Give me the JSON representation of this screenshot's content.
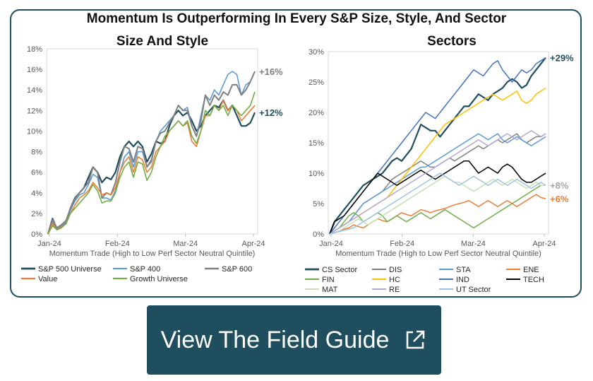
{
  "title": "Momentum Is Outperforming In Every S&P Size, Style, And Sector",
  "cta": {
    "label": "View The Field Guide",
    "icon": "external-link-icon"
  },
  "chart_data": [
    {
      "type": "line",
      "title": "Size And Style",
      "xlabel": "Momentum Trade (High to Low Perf Sector Neutral Quintile)",
      "ylabel": "",
      "x_ticks": [
        "Jan-24",
        "Feb-24",
        "Mar-24",
        "Apr-24"
      ],
      "y_ticks": [
        "0%",
        "2%",
        "4%",
        "6%",
        "8%",
        "10%",
        "12%",
        "14%",
        "16%",
        "18%"
      ],
      "ylim": [
        0,
        18
      ],
      "annotations": [
        {
          "text": "+16%",
          "color": "#7f7f7f",
          "y": 15.8
        },
        {
          "text": "+12%",
          "color": "#1f4e5f",
          "y": 11.8
        }
      ],
      "legend_position": "bottom",
      "series": [
        {
          "name": "S&P 500 Universe",
          "color": "#1f4e5f",
          "width": 2.2,
          "values": [
            0,
            1.5,
            0.5,
            0.8,
            1.0,
            2.5,
            3.5,
            4.0,
            4.5,
            5.5,
            6.5,
            6.0,
            5.0,
            5.5,
            5.3,
            6.0,
            7.5,
            8.5,
            9.0,
            8.5,
            9.0,
            8.5,
            7.0,
            7.8,
            9.0,
            8.8,
            9.0,
            10.5,
            11.5,
            12.0,
            11.5,
            11.8,
            11.0,
            10.0,
            10.5,
            11.5,
            12.0,
            12.5,
            12.3,
            13.0,
            12.0,
            12.5,
            11.5,
            10.5,
            10.5,
            10.8,
            11.8
          ]
        },
        {
          "name": "S&P 400",
          "color": "#5b9bd5",
          "width": 1.6,
          "values": [
            0,
            1.2,
            0.5,
            0.8,
            1.2,
            2.3,
            3.2,
            3.8,
            4.0,
            4.8,
            5.8,
            5.5,
            3.5,
            3.5,
            3.3,
            4.2,
            6.0,
            7.5,
            8.0,
            6.5,
            8.0,
            8.0,
            6.5,
            7.0,
            9.0,
            10.0,
            10.5,
            11.0,
            11.5,
            12.5,
            12.0,
            12.3,
            10.5,
            9.5,
            11.5,
            13.5,
            13.0,
            14.0,
            13.5,
            14.5,
            15.5,
            15.8,
            15.5,
            13.5,
            14.5,
            14.8,
            15.8
          ]
        },
        {
          "name": "S&P 600",
          "color": "#808080",
          "width": 2.0,
          "values": [
            0,
            1.4,
            0.6,
            0.9,
            1.3,
            2.5,
            3.4,
            4.0,
            4.5,
            5.0,
            6.5,
            6.0,
            3.5,
            4.0,
            3.8,
            5.0,
            7.0,
            8.5,
            8.3,
            7.0,
            8.5,
            8.3,
            6.5,
            7.2,
            9.0,
            9.8,
            10.0,
            10.8,
            11.5,
            12.5,
            12.0,
            12.0,
            10.5,
            9.5,
            11.0,
            13.5,
            12.5,
            13.5,
            13.0,
            13.8,
            13.5,
            14.5,
            14.5,
            13.5,
            14.0,
            14.8,
            15.8
          ]
        },
        {
          "name": "Value",
          "color": "#ed7d31",
          "width": 1.6,
          "values": [
            0,
            1.0,
            0.4,
            0.7,
            1.0,
            2.0,
            2.8,
            3.5,
            3.8,
            4.2,
            5.0,
            4.5,
            3.8,
            4.0,
            3.8,
            4.5,
            6.0,
            7.0,
            7.5,
            6.0,
            7.5,
            7.2,
            6.0,
            6.5,
            8.0,
            8.5,
            9.0,
            10.0,
            10.5,
            11.0,
            10.5,
            10.8,
            9.0,
            8.5,
            10.0,
            11.5,
            11.5,
            12.5,
            12.0,
            13.0,
            12.0,
            12.5,
            12.0,
            11.0,
            11.5,
            12.0,
            12.5
          ]
        },
        {
          "name": "Growth Universe",
          "color": "#70ad47",
          "width": 1.6,
          "values": [
            0,
            0.8,
            0.4,
            0.6,
            1.0,
            2.0,
            2.5,
            3.0,
            3.5,
            4.0,
            4.8,
            4.2,
            3.0,
            3.2,
            3.2,
            4.0,
            5.5,
            6.5,
            7.0,
            5.5,
            7.0,
            6.8,
            5.2,
            6.0,
            7.5,
            8.5,
            9.5,
            10.0,
            10.5,
            11.0,
            10.5,
            11.0,
            9.5,
            8.8,
            10.0,
            12.0,
            11.5,
            12.5,
            12.0,
            12.5,
            11.5,
            12.5,
            12.0,
            11.5,
            12.0,
            12.5,
            13.8
          ]
        }
      ]
    },
    {
      "type": "line",
      "title": "Sectors",
      "xlabel": "Momentum Trade (High to Low Perf Sector Neutral Quintile)",
      "ylabel": "",
      "x_ticks": [
        "Jan-24",
        "Feb-24",
        "Mar-24",
        "Apr-24"
      ],
      "y_ticks": [
        "0%",
        "5%",
        "10%",
        "15%",
        "20%",
        "25%",
        "30%"
      ],
      "ylim": [
        0,
        30
      ],
      "annotations": [
        {
          "text": "+29%",
          "color": "#1f4e5f",
          "y": 29
        },
        {
          "text": "+8%",
          "color": "#a6a6a6",
          "y": 8
        },
        {
          "text": "+6%",
          "color": "#ed7d31",
          "y": 5.8
        }
      ],
      "legend_position": "bottom",
      "series": [
        {
          "name": "CS Sector",
          "color": "#1f4e5f",
          "width": 2.2,
          "values": [
            0,
            2,
            3,
            4,
            5,
            6,
            7,
            8,
            8.5,
            9,
            9.5,
            10,
            11,
            12,
            12.5,
            12,
            13,
            14,
            16,
            18,
            17.5,
            17,
            17,
            16,
            17,
            18,
            19,
            20,
            21,
            21,
            22,
            23,
            22.5,
            22,
            23,
            23.5,
            24,
            25,
            25.5,
            25,
            24,
            24.5,
            26,
            27,
            28,
            29
          ]
        },
        {
          "name": "DIS",
          "color": "#7f7f7f",
          "width": 1.5,
          "values": [
            0,
            0.5,
            1,
            1.5,
            2,
            3,
            4,
            5,
            5.5,
            6,
            6.5,
            7,
            8,
            9,
            9.5,
            10,
            10.5,
            11,
            11.5,
            12,
            11.5,
            11,
            11,
            11.5,
            12,
            12.5,
            12,
            12.5,
            13,
            13.5,
            14,
            14.5,
            14,
            14.5,
            15,
            15.5,
            15,
            15.5,
            16,
            16.5,
            15.5,
            15,
            15.5,
            16,
            16,
            16.5
          ]
        },
        {
          "name": "STA",
          "color": "#5b9bd5",
          "width": 1.5,
          "values": [
            0,
            0.5,
            1,
            1.5,
            2,
            3,
            4,
            5,
            5.5,
            6,
            6.5,
            7,
            7.5,
            8,
            8.5,
            9,
            9.5,
            10,
            10.5,
            11,
            11,
            11.5,
            12,
            12.5,
            13,
            13.5,
            14,
            14.5,
            15,
            15.5,
            16,
            16.5,
            16,
            15.5,
            16,
            16.5,
            15.5,
            15,
            15.5,
            16,
            15.5,
            15,
            14.5,
            15,
            15.5,
            16
          ]
        },
        {
          "name": "ENE",
          "color": "#ed7d31",
          "width": 1.5,
          "values": [
            0,
            0.2,
            0.5,
            0.8,
            1,
            1.5,
            1.2,
            1,
            1.5,
            2,
            2.5,
            2.2,
            2,
            2.5,
            3,
            3.5,
            3.2,
            3,
            3.5,
            4,
            3.8,
            3.5,
            3.8,
            4,
            4.2,
            4.5,
            4.8,
            5,
            5.2,
            5.5,
            5,
            4.5,
            5,
            5.5,
            5,
            4.5,
            5,
            5.5,
            5,
            4.5,
            5,
            5.5,
            6,
            6.5,
            6,
            5.8
          ]
        },
        {
          "name": "FIN",
          "color": "#70ad47",
          "width": 1.5,
          "values": [
            0,
            0.5,
            1,
            2,
            3,
            3.5,
            3,
            2,
            2.5,
            3,
            3.5,
            3,
            2,
            2.5,
            3,
            2.5,
            2,
            2.5,
            3,
            3.5,
            3,
            2.5,
            3,
            3.5,
            4,
            3.5,
            3,
            2.5,
            2,
            1.5,
            1,
            1.5,
            2,
            2.5,
            3,
            3.5,
            4,
            4.5,
            5,
            5.5,
            6,
            6.5,
            7,
            7.5,
            8,
            8
          ]
        },
        {
          "name": "HC",
          "color": "#ffc000",
          "width": 1.5,
          "values": [
            0,
            0.5,
            1,
            1.5,
            2,
            2.5,
            3,
            3.5,
            4,
            4.5,
            5,
            5.5,
            6,
            7,
            8,
            9,
            10,
            11,
            12,
            13,
            14,
            15,
            16,
            17,
            18,
            18.5,
            19,
            19.5,
            20,
            20.5,
            21,
            21.5,
            22,
            22.5,
            23,
            22.5,
            22,
            22.5,
            23,
            23.5,
            22,
            21.5,
            22,
            23,
            23.5,
            24
          ]
        },
        {
          "name": "IND",
          "color": "#4472c4",
          "width": 1.5,
          "values": [
            0,
            1,
            2,
            3,
            4,
            5,
            6,
            7,
            8,
            9,
            10,
            11,
            12,
            13,
            14,
            15,
            16,
            17,
            18,
            19,
            20,
            19.5,
            19,
            20,
            21,
            22,
            23,
            24,
            25,
            26,
            27,
            26.5,
            26,
            27,
            28,
            28.5,
            27,
            26,
            25,
            26,
            27,
            26.5,
            27,
            28,
            28.5,
            29
          ]
        },
        {
          "name": "TECH",
          "color": "#000000",
          "width": 1.5,
          "values": [
            0,
            2,
            2.5,
            3,
            4,
            5,
            6,
            7,
            8,
            9,
            10,
            9.5,
            9,
            8.5,
            8,
            8.5,
            9,
            9.5,
            10,
            10.5,
            10,
            9.5,
            9,
            9.5,
            10,
            10.5,
            11,
            11.5,
            12,
            12,
            11,
            10,
            10.5,
            11,
            10.5,
            10,
            11,
            11.5,
            11,
            10,
            9,
            8.5,
            8.5,
            9,
            9.5,
            10
          ]
        },
        {
          "name": "MAT",
          "color": "#c5e0b4",
          "width": 1.5,
          "values": [
            0,
            0.2,
            0.5,
            1,
            1.5,
            2,
            2.5,
            2,
            1.5,
            2,
            2.5,
            3,
            3.5,
            4,
            4.5,
            5,
            5.5,
            6,
            6.5,
            7,
            7.5,
            8,
            8.5,
            9,
            9.5,
            9,
            8.5,
            8.5,
            8,
            7.5,
            7,
            7.5,
            8,
            8.5,
            9,
            8.5,
            8,
            8.5,
            9,
            8.5,
            8,
            7.5,
            8,
            8.5,
            8,
            8
          ]
        },
        {
          "name": "RE",
          "color": "#b4a7d6",
          "width": 1.5,
          "values": [
            0,
            0.5,
            1,
            1.5,
            2,
            2.5,
            3,
            3.5,
            4,
            4.5,
            5,
            5.5,
            6,
            6.5,
            7,
            7.5,
            8,
            8.5,
            9,
            9.5,
            10,
            10.5,
            11,
            11.5,
            12,
            12.5,
            13,
            13.5,
            14,
            14.5,
            15,
            15.5,
            15,
            14.5,
            15,
            15.5,
            16,
            16.5,
            16,
            15.5,
            16,
            16.5,
            17,
            16.5,
            16,
            16.5
          ]
        },
        {
          "name": "UT Sector",
          "color": "#9dc3e6",
          "width": 1.5,
          "values": [
            0,
            0.2,
            0.4,
            0.6,
            0.8,
            1,
            1.5,
            2,
            2.5,
            3,
            3.5,
            4,
            4.5,
            5,
            5.5,
            6,
            6.5,
            7,
            7.5,
            8,
            8.5,
            9,
            9.5,
            10,
            9.5,
            9,
            8.5,
            8,
            8.5,
            9,
            9.5,
            9,
            8.5,
            8,
            8.5,
            9,
            8.5,
            8,
            8.5,
            9,
            8.5,
            8,
            7.5,
            8,
            8.5,
            8
          ]
        }
      ]
    }
  ]
}
